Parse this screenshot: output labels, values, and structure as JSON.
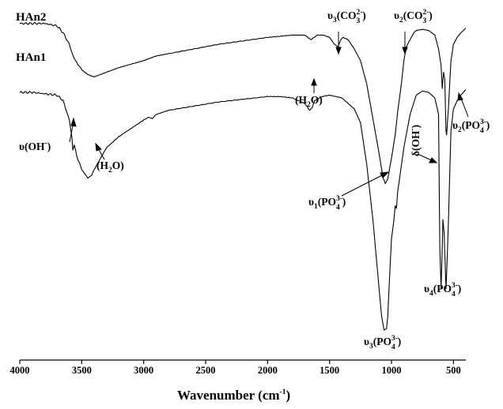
{
  "chart_data": {
    "type": "line",
    "title": "",
    "xlabel": "Wavenumber (cm",
    "xlabel_sup": "-1",
    "xlabel_close": ")",
    "ylabel": "",
    "xlim": [
      4000,
      400
    ],
    "x_reversed": true,
    "y_axis_shown": false,
    "grid": false,
    "x_ticks": [
      4000,
      3500,
      3000,
      2500,
      2000,
      1500,
      1000,
      500
    ],
    "x_tick_labels": [
      "4000",
      "3500",
      "3000",
      "2500",
      "2000",
      "1500",
      "1000",
      "500"
    ],
    "series": [
      {
        "name": "HAn2",
        "x": [
          4000,
          3900,
          3800,
          3700,
          3650,
          3600,
          3570,
          3550,
          3500,
          3450,
          3400,
          3350,
          3300,
          3200,
          3100,
          3000,
          2950,
          2900,
          2800,
          2600,
          2400,
          2200,
          2000,
          1900,
          1800,
          1700,
          1650,
          1600,
          1550,
          1500,
          1460,
          1430,
          1410,
          1390,
          1350,
          1300,
          1250,
          1200,
          1150,
          1100,
          1070,
          1050,
          1030,
          1000,
          970,
          950,
          920,
          900,
          880,
          870,
          850,
          820,
          800,
          750,
          700,
          650,
          620,
          600,
          590,
          580,
          570,
          560,
          555,
          540,
          520,
          500,
          470,
          440,
          420,
          400
        ],
        "y": [
          96,
          96,
          96,
          95,
          92,
          87,
          82,
          80,
          76,
          74,
          73,
          74,
          75,
          77,
          78.5,
          80,
          81,
          82,
          83,
          85,
          87,
          88.5,
          90,
          90.5,
          91,
          91,
          89,
          91,
          91,
          90,
          87,
          86,
          89,
          90,
          89,
          85,
          80,
          70,
          55,
          40,
          30,
          27,
          29,
          38,
          48,
          58,
          70,
          80,
          86,
          87,
          89,
          92,
          93,
          93.5,
          93,
          91,
          85,
          78,
          68,
          75,
          72,
          50,
          48,
          60,
          80,
          87,
          90,
          92,
          93,
          94
        ]
      },
      {
        "name": "HAn1",
        "x": [
          4000,
          3900,
          3800,
          3700,
          3650,
          3600,
          3580,
          3572,
          3560,
          3540,
          3500,
          3450,
          3420,
          3400,
          3350,
          3300,
          3200,
          3100,
          3000,
          2960,
          2930,
          2900,
          2800,
          2600,
          2400,
          2200,
          2000,
          1900,
          1800,
          1700,
          1660,
          1640,
          1620,
          1560,
          1500,
          1400,
          1300,
          1250,
          1200,
          1150,
          1120,
          1100,
          1080,
          1060,
          1040,
          1030,
          1020,
          1000,
          980,
          970,
          960,
          950,
          900,
          850,
          800,
          750,
          700,
          650,
          620,
          610,
          600,
          590,
          585,
          575,
          565,
          560,
          555,
          540,
          520,
          500,
          470,
          440,
          420,
          400
        ],
        "y": [
          86,
          86,
          85.5,
          85,
          83,
          76,
          70,
          65,
          67,
          63,
          58,
          55,
          56,
          58,
          62,
          66,
          70,
          73,
          76,
          77,
          76.5,
          78,
          79.5,
          81,
          82.5,
          83.5,
          84.5,
          84.5,
          84,
          82,
          79.5,
          80.5,
          83,
          84.5,
          85,
          84,
          80,
          75,
          60,
          40,
          25,
          15,
          5,
          0,
          0.5,
          5,
          15,
          33,
          40,
          45,
          44,
          50,
          66,
          78,
          85,
          86.5,
          86,
          84,
          78,
          30,
          15,
          30,
          40,
          35,
          22,
          15,
          20,
          40,
          72,
          80,
          83,
          85,
          86,
          87
        ]
      }
    ],
    "series_labels": [
      "HAn2",
      "HAn1"
    ],
    "annotations": [
      {
        "id": "oh-stretch",
        "base": "υ(OH",
        "sup": "-",
        "tail": ")"
      },
      {
        "id": "h2o-1",
        "base": "(H",
        "sub": "2",
        "tail": "O)"
      },
      {
        "id": "h2o-2",
        "base": "(H",
        "sub": "2",
        "tail": "O)"
      },
      {
        "id": "nu3-co3",
        "base": "υ",
        "sub": "3",
        "mid": "(CO",
        "sup": "2-",
        "sub2": "3",
        "tail": ")"
      },
      {
        "id": "nu2-co3",
        "base": "υ",
        "sub": "2",
        "mid": "(CO",
        "sup": "2-",
        "sub2": "3",
        "tail": ")"
      },
      {
        "id": "nu1-po4",
        "base": "υ",
        "sub": "1",
        "mid": "(PO",
        "sup": "3-",
        "sub2": "4",
        "tail": ")"
      },
      {
        "id": "delta-oh",
        "base": "δ(OH",
        "sup": "-",
        "tail": ")"
      },
      {
        "id": "nu2-po4",
        "base": "υ",
        "sub": "2",
        "mid": "(PO",
        "sup": "3-",
        "sub2": "4",
        "tail": ")"
      },
      {
        "id": "nu4-po4",
        "base": "υ",
        "sub": "4",
        "mid": "(PO",
        "sup": "3-",
        "sub2": "4",
        "tail": ")"
      },
      {
        "id": "nu3-po4",
        "base": "υ",
        "sub": "3",
        "mid": "(PO",
        "sup": "3-",
        "sub2": "4",
        "tail": ")"
      }
    ]
  }
}
